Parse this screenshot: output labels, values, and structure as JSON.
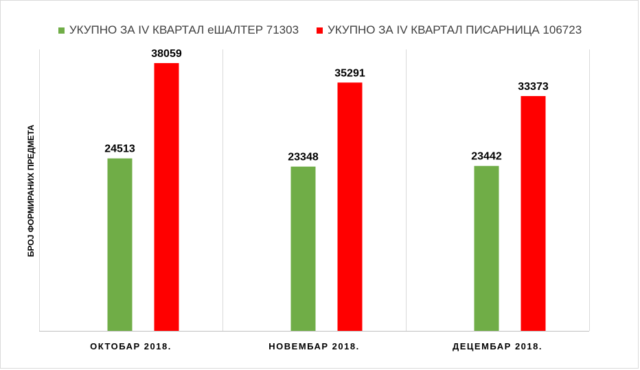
{
  "chart_data": {
    "type": "bar",
    "title": "",
    "xlabel": "",
    "ylabel": "БРОЈ ФОРМИРАНИХ ПРЕДМЕТА",
    "categories": [
      "ОКТОБАР 2018.",
      "НОВЕМБАР 2018.",
      "ДЕЦЕМБАР 2018."
    ],
    "series": [
      {
        "name": "УКУПНО ЗА IV КВАРТАЛ еШАЛТЕР 71303",
        "color": "#70ad47",
        "values": [
          24513,
          23348,
          23442
        ]
      },
      {
        "name": "УКУПНО ЗА IV КВАРТАЛ ПИСАРНИЦА 106723",
        "color": "#ff0000",
        "values": [
          38059,
          35291,
          33373
        ]
      }
    ],
    "ylim": [
      0,
      40000
    ],
    "grid": false,
    "legend": "top",
    "data_labels": true
  }
}
